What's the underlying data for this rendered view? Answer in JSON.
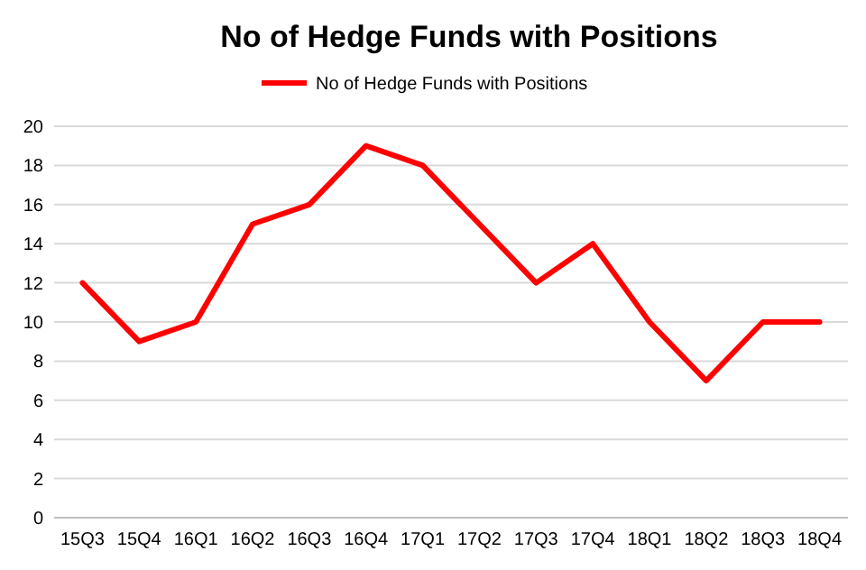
{
  "chart_data": {
    "type": "line",
    "title": "No of Hedge Funds with Positions",
    "categories": [
      "15Q3",
      "15Q4",
      "16Q1",
      "16Q2",
      "16Q3",
      "16Q4",
      "17Q1",
      "17Q2",
      "17Q3",
      "17Q4",
      "18Q1",
      "18Q2",
      "18Q3",
      "18Q4"
    ],
    "series": [
      {
        "name": "No of Hedge Funds with Positions",
        "color": "#ff0000",
        "values": [
          12,
          9,
          10,
          15,
          16,
          19,
          18,
          15,
          12,
          14,
          10,
          7,
          10,
          10
        ]
      }
    ],
    "ylim": [
      0,
      20
    ],
    "yticks": [
      0,
      2,
      4,
      6,
      8,
      10,
      12,
      14,
      16,
      18,
      20
    ],
    "grid": "y",
    "legend": "top",
    "marker": "none",
    "line_style": "solid"
  }
}
